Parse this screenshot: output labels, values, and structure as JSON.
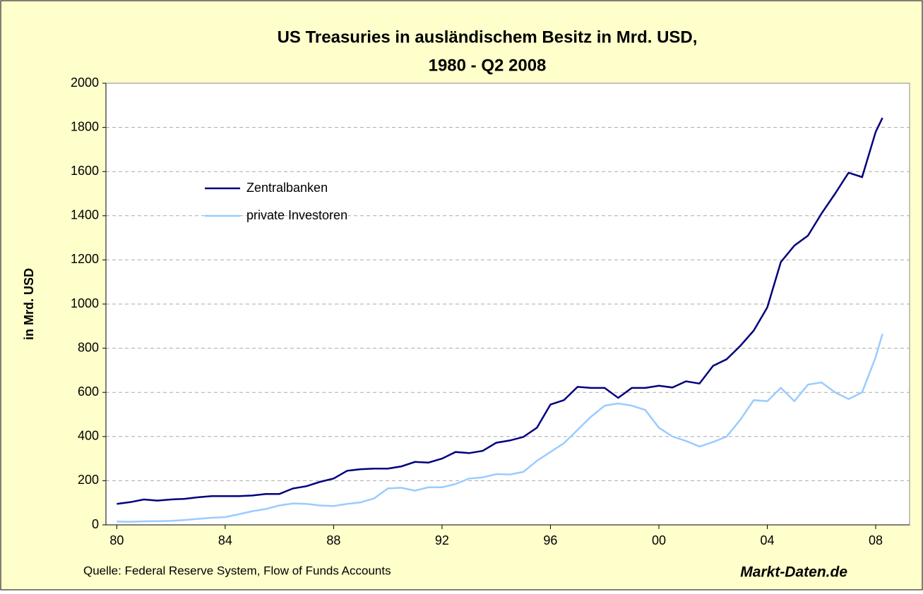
{
  "chart_data": {
    "type": "line",
    "title": "US Treasuries in ausländischem Besitz in Mrd. USD,",
    "subtitle": "1980 - Q2 2008",
    "ylabel": "in Mrd. USD",
    "source": "Quelle: Federal Reserve System, Flow of Funds Accounts",
    "brand": "Markt-Daten.de",
    "x": [
      1980,
      1980.5,
      1981,
      1981.5,
      1982,
      1982.5,
      1983,
      1983.5,
      1984,
      1984.5,
      1985,
      1985.5,
      1986,
      1986.5,
      1987,
      1987.5,
      1988,
      1988.5,
      1989,
      1989.5,
      1990,
      1990.5,
      1991,
      1991.5,
      1992,
      1992.5,
      1993,
      1993.5,
      1994,
      1994.5,
      1995,
      1995.5,
      1996,
      1996.5,
      1997,
      1997.5,
      1998,
      1998.5,
      1999,
      1999.5,
      2000,
      2000.5,
      2001,
      2001.5,
      2002,
      2002.5,
      2003,
      2003.5,
      2004,
      2004.5,
      2005,
      2005.5,
      2006,
      2006.5,
      2007,
      2007.5,
      2008,
      2008.25
    ],
    "series": [
      {
        "name": "Zentralbanken",
        "color": "#000080",
        "values": [
          95,
          103,
          115,
          110,
          115,
          118,
          125,
          130,
          130,
          130,
          133,
          140,
          140,
          165,
          175,
          195,
          210,
          245,
          252,
          255,
          255,
          265,
          285,
          282,
          300,
          330,
          325,
          335,
          372,
          382,
          398,
          440,
          545,
          565,
          625,
          620,
          620,
          575,
          620,
          620,
          630,
          622,
          650,
          640,
          720,
          750,
          810,
          880,
          985,
          1190,
          1265,
          1310,
          1410,
          1500,
          1595,
          1575,
          1780,
          1843
        ]
      },
      {
        "name": "private Investoren",
        "color": "#99ccff",
        "values": [
          15,
          14,
          16,
          17,
          18,
          22,
          27,
          32,
          35,
          48,
          62,
          72,
          88,
          97,
          95,
          88,
          85,
          95,
          102,
          120,
          165,
          168,
          155,
          170,
          170,
          185,
          210,
          215,
          230,
          228,
          240,
          290,
          330,
          370,
          430,
          490,
          540,
          550,
          540,
          520,
          440,
          400,
          380,
          355,
          375,
          400,
          475,
          565,
          560,
          620,
          560,
          635,
          645,
          600,
          570,
          600,
          760,
          865
        ]
      }
    ],
    "xlim": [
      1979.6,
      2009.25
    ],
    "xticks": [
      {
        "value": 1980,
        "label": "80"
      },
      {
        "value": 1984,
        "label": "84"
      },
      {
        "value": 1988,
        "label": "88"
      },
      {
        "value": 1992,
        "label": "92"
      },
      {
        "value": 1996,
        "label": "96"
      },
      {
        "value": 2000,
        "label": "00"
      },
      {
        "value": 2004,
        "label": "04"
      },
      {
        "value": 2008,
        "label": "08"
      }
    ],
    "ylim": [
      0,
      2000
    ],
    "yticks": [
      0,
      200,
      400,
      600,
      800,
      1000,
      1200,
      1400,
      1600,
      1800,
      2000
    ],
    "grid": true,
    "legend": "upper left"
  }
}
